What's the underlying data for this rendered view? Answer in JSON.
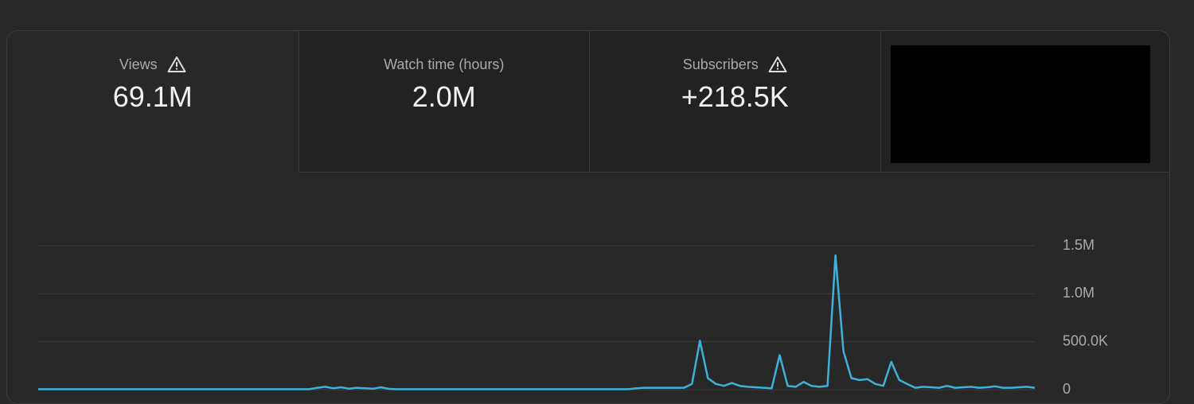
{
  "tabs": [
    {
      "label": "Views",
      "value": "69.1M",
      "warning": true,
      "selected": true
    },
    {
      "label": "Watch time (hours)",
      "value": "2.0M",
      "warning": false,
      "selected": false
    },
    {
      "label": "Subscribers",
      "value": "+218.5K",
      "warning": true,
      "selected": false
    }
  ],
  "chart_data": {
    "type": "line",
    "color": "#3fb1d9",
    "grid": true,
    "ylim": [
      0,
      1500000
    ],
    "yticks": [
      0,
      {
        "value": 500000,
        "label": "500.0K"
      },
      {
        "value": 1000000,
        "label": "1.0M"
      },
      {
        "value": 1500000,
        "label": "1.5M"
      }
    ],
    "values": [
      5000,
      5000,
      5000,
      5000,
      5000,
      5000,
      5000,
      5000,
      5000,
      5000,
      5000,
      5000,
      5000,
      5000,
      5000,
      5000,
      5000,
      5000,
      5000,
      5000,
      5000,
      5000,
      5000,
      5000,
      5000,
      5000,
      5000,
      5000,
      5000,
      5000,
      5000,
      5000,
      5000,
      5000,
      5000,
      20000,
      30000,
      15000,
      25000,
      10000,
      20000,
      15000,
      10000,
      25000,
      8000,
      5000,
      5000,
      5000,
      5000,
      5000,
      5000,
      5000,
      5000,
      5000,
      5000,
      5000,
      5000,
      5000,
      5000,
      5000,
      5000,
      5000,
      5000,
      5000,
      5000,
      5000,
      5000,
      5000,
      5000,
      5000,
      5000,
      5000,
      5000,
      5000,
      5000,
      15000,
      20000,
      20000,
      20000,
      20000,
      20000,
      20000,
      60000,
      510000,
      120000,
      60000,
      40000,
      70000,
      40000,
      30000,
      25000,
      20000,
      15000,
      360000,
      40000,
      30000,
      80000,
      40000,
      30000,
      40000,
      1400000,
      400000,
      120000,
      100000,
      110000,
      60000,
      40000,
      290000,
      100000,
      60000,
      20000,
      30000,
      25000,
      20000,
      40000,
      20000,
      25000,
      30000,
      20000,
      25000,
      35000,
      20000,
      20000,
      25000,
      30000,
      20000
    ]
  }
}
